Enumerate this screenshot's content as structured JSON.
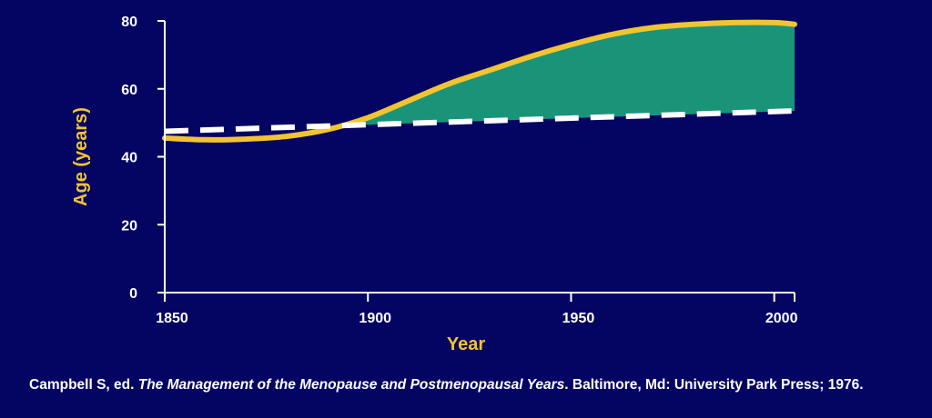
{
  "chart_data": {
    "type": "line",
    "title": "",
    "xlabel": "Year",
    "ylabel": "Age (years)",
    "xlim": [
      1850,
      2005
    ],
    "ylim": [
      0,
      80
    ],
    "x_ticks": [
      "1850",
      "1900",
      "1950",
      "2000"
    ],
    "y_ticks": [
      "0",
      "20",
      "40",
      "60",
      "80"
    ],
    "grid": false,
    "legend": "none",
    "series": [
      {
        "style": "solid",
        "color": "#f2c431",
        "x": [
          1850,
          1860,
          1870,
          1880,
          1890,
          1900,
          1910,
          1920,
          1930,
          1940,
          1950,
          1960,
          1970,
          1980,
          1990,
          2000,
          2005
        ],
        "y": [
          45.5,
          45,
          45.2,
          46,
          48,
          51.5,
          56.5,
          61.5,
          65.5,
          69.5,
          73,
          76,
          78,
          79,
          79.5,
          79.5,
          79
        ]
      },
      {
        "style": "dashed",
        "color": "#ffffff",
        "x": [
          1850,
          2005
        ],
        "y": [
          47.5,
          53.5
        ]
      }
    ],
    "shaded_region": {
      "color": "#1a9479",
      "between": "solid line above dashed line"
    }
  },
  "citation": {
    "prefix": "Campbell S, ed. ",
    "title": "The Management of the Menopause and Postmenopausal Years",
    "suffix": ". Baltimore, Md: University Park Press; 1976."
  }
}
